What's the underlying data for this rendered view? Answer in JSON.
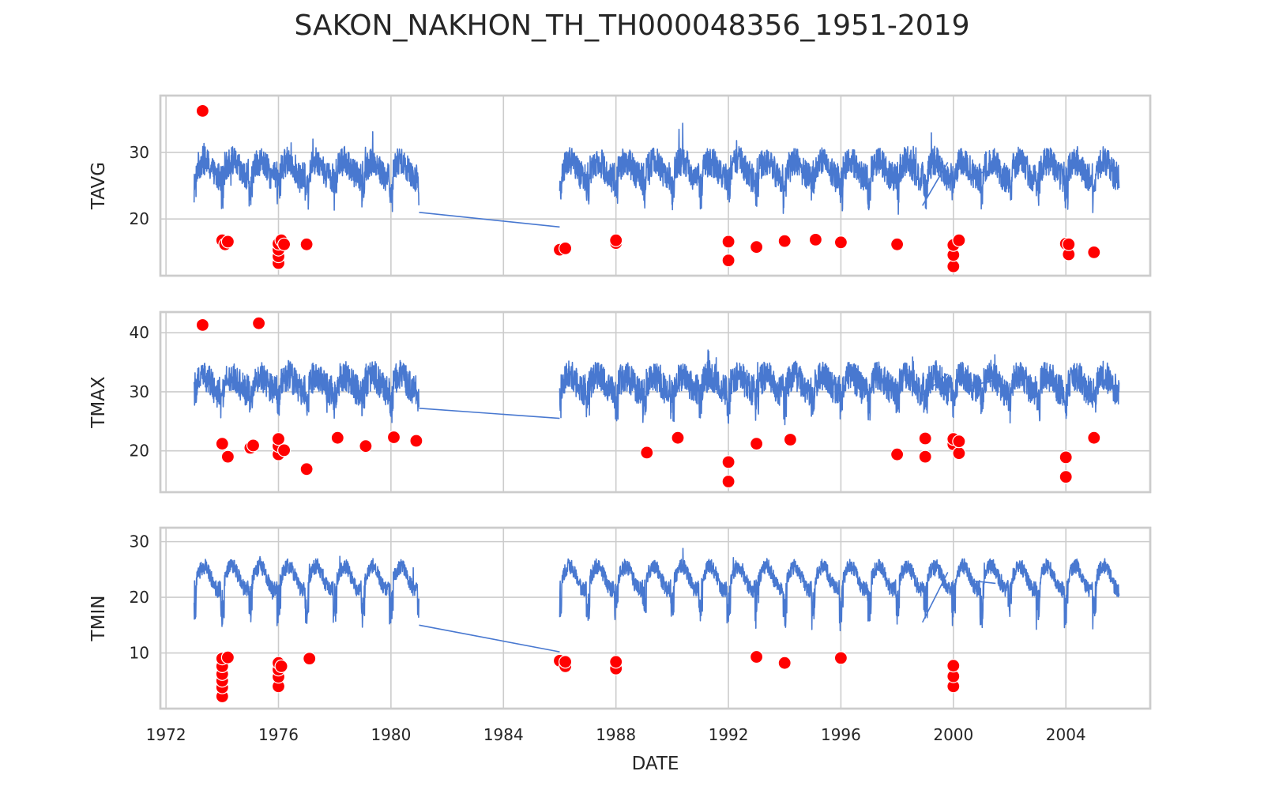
{
  "chart_data": {
    "type": "line",
    "title": "SAKON_NAKHON_TH_TH000048356_1951-2019",
    "xlabel": "DATE",
    "xlim": [
      1971.8,
      2007.0
    ],
    "x_ticks": [
      "1972",
      "1976",
      "1980",
      "1984",
      "1988",
      "1992",
      "1996",
      "2000",
      "2004"
    ],
    "grid": true,
    "legend": "none",
    "colors": {
      "line": "#4878d0",
      "outlier": "#ff0000"
    },
    "segments": [
      [
        1973.0,
        1981.0
      ],
      [
        1986.0,
        2005.9
      ]
    ],
    "panels": [
      {
        "name": "TAVG",
        "ylabel": "TAVG",
        "ylim": [
          11.5,
          38.5
        ],
        "yticks": [
          "20",
          "30"
        ],
        "baseline": 27.5,
        "amp": 3.5,
        "noise": 2.2,
        "connectors": [
          [
            1981.0,
            21.0,
            1986.0,
            18.8
          ],
          [
            1998.9,
            22.0,
            1999.8,
            28.5
          ],
          [
            2000.6,
            26.5,
            2001.5,
            27.5
          ]
        ],
        "outliers": [
          [
            1973.3,
            36.2
          ],
          [
            1974.0,
            16.8
          ],
          [
            1974.1,
            16.2
          ],
          [
            1974.2,
            16.6
          ],
          [
            1976.0,
            13.4
          ],
          [
            1976.0,
            14.4
          ],
          [
            1976.0,
            15.4
          ],
          [
            1976.0,
            16.3
          ],
          [
            1976.1,
            16.8
          ],
          [
            1976.2,
            16.2
          ],
          [
            1977.0,
            16.2
          ],
          [
            1986.0,
            15.4
          ],
          [
            1986.2,
            15.6
          ],
          [
            1988.0,
            16.4
          ],
          [
            1988.0,
            16.8
          ],
          [
            1992.0,
            13.8
          ],
          [
            1992.0,
            16.6
          ],
          [
            1993.0,
            15.8
          ],
          [
            1994.0,
            16.7
          ],
          [
            1995.1,
            16.9
          ],
          [
            1996.0,
            16.5
          ],
          [
            1998.0,
            16.2
          ],
          [
            2000.0,
            12.9
          ],
          [
            2000.0,
            14.6
          ],
          [
            2000.0,
            16.1
          ],
          [
            2000.2,
            16.8
          ],
          [
            2004.0,
            16.3
          ],
          [
            2004.1,
            14.7
          ],
          [
            2004.1,
            16.2
          ],
          [
            2005.0,
            15.0
          ]
        ]
      },
      {
        "name": "TMAX",
        "ylabel": "TMAX",
        "ylim": [
          13.0,
          43.5
        ],
        "yticks": [
          "20",
          "30",
          "40"
        ],
        "baseline": 31.5,
        "amp": 3.5,
        "noise": 2.6,
        "connectors": [
          [
            1981.0,
            27.2,
            1986.0,
            25.5
          ],
          [
            1998.9,
            29.5,
            1999.8,
            33.0
          ],
          [
            2000.6,
            31.0,
            2001.5,
            32.0
          ]
        ],
        "outliers": [
          [
            1973.3,
            41.3
          ],
          [
            1974.0,
            21.2
          ],
          [
            1974.2,
            19.0
          ],
          [
            1975.0,
            20.5
          ],
          [
            1975.1,
            20.9
          ],
          [
            1975.3,
            41.6
          ],
          [
            1976.0,
            19.4
          ],
          [
            1976.0,
            20.8
          ],
          [
            1976.0,
            22.0
          ],
          [
            1976.2,
            20.1
          ],
          [
            1977.0,
            16.9
          ],
          [
            1978.1,
            22.2
          ],
          [
            1979.1,
            20.8
          ],
          [
            1980.1,
            22.3
          ],
          [
            1980.9,
            21.7
          ],
          [
            1989.1,
            19.7
          ],
          [
            1990.2,
            22.2
          ],
          [
            1992.0,
            14.8
          ],
          [
            1992.0,
            18.1
          ],
          [
            1993.0,
            21.2
          ],
          [
            1994.2,
            21.9
          ],
          [
            1998.0,
            19.4
          ],
          [
            1999.0,
            19.0
          ],
          [
            1999.0,
            22.1
          ],
          [
            2000.0,
            21.1
          ],
          [
            2000.0,
            22.0
          ],
          [
            2000.2,
            19.6
          ],
          [
            2000.2,
            21.6
          ],
          [
            2004.0,
            15.6
          ],
          [
            2004.0,
            18.9
          ],
          [
            2005.0,
            22.2
          ]
        ]
      },
      {
        "name": "TMIN",
        "ylabel": "TMIN",
        "ylim": [
          0.0,
          32.5
        ],
        "yticks": [
          "10",
          "20",
          "30"
        ],
        "baseline": 23.5,
        "amp": 6.0,
        "noise": 1.4,
        "connectors": [
          [
            1981.0,
            15.0,
            1986.0,
            10.2
          ],
          [
            1998.9,
            15.5,
            1999.8,
            24.5
          ],
          [
            2000.6,
            23.0,
            2001.5,
            22.5
          ]
        ],
        "outliers": [
          [
            1974.0,
            2.2
          ],
          [
            1974.0,
            3.8
          ],
          [
            1974.0,
            5.0
          ],
          [
            1974.0,
            6.2
          ],
          [
            1974.0,
            7.6
          ],
          [
            1974.0,
            9.0
          ],
          [
            1974.2,
            9.2
          ],
          [
            1976.0,
            4.0
          ],
          [
            1976.0,
            5.7
          ],
          [
            1976.0,
            7.0
          ],
          [
            1976.0,
            8.2
          ],
          [
            1976.1,
            7.6
          ],
          [
            1977.1,
            9.0
          ],
          [
            1986.0,
            8.6
          ],
          [
            1986.2,
            7.6
          ],
          [
            1986.2,
            8.4
          ],
          [
            1988.0,
            7.2
          ],
          [
            1988.0,
            8.4
          ],
          [
            1993.0,
            9.3
          ],
          [
            1994.0,
            8.2
          ],
          [
            1996.0,
            9.1
          ],
          [
            2000.0,
            4.0
          ],
          [
            2000.0,
            5.8
          ],
          [
            2000.0,
            7.7
          ]
        ]
      }
    ]
  }
}
